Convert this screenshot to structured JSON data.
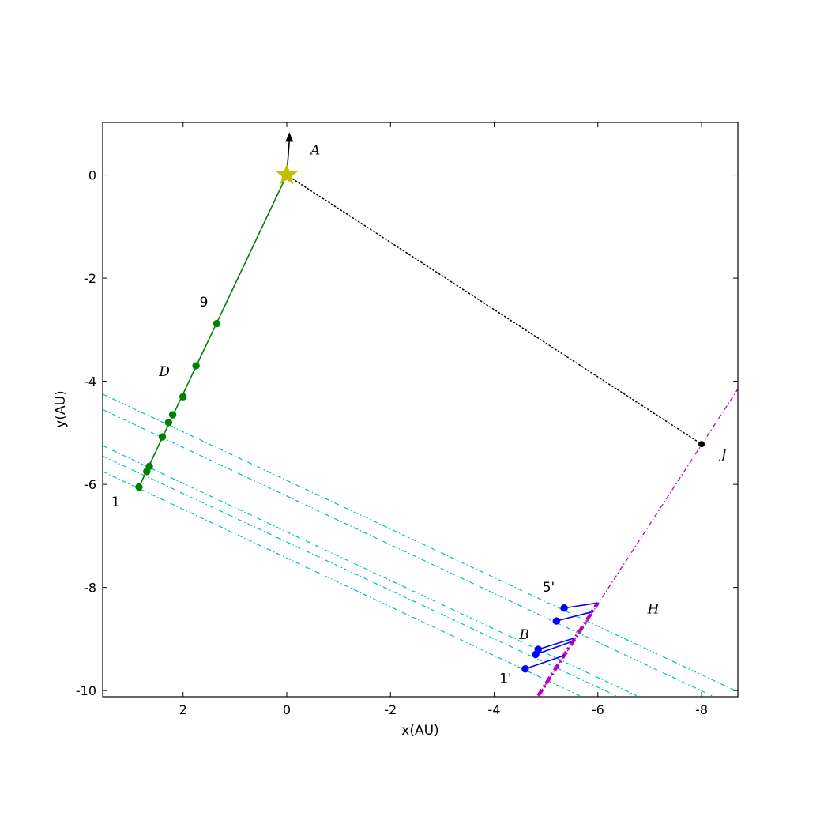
{
  "chart_data": {
    "type": "scatter",
    "title": "",
    "xlabel": "x(AU)",
    "ylabel": "y(AU)",
    "xlim": [
      3.55,
      -8.7
    ],
    "ylim": [
      -10.12,
      1.02
    ],
    "x_reversed": true,
    "grid": false,
    "x_ticks": [
      2,
      0,
      -2,
      -4,
      -6,
      -8
    ],
    "y_ticks": [
      0,
      -2,
      -4,
      -6,
      -8,
      -10
    ],
    "x_tick_labels": [
      "2",
      "0",
      "-2",
      "-4",
      "-6",
      "-8"
    ],
    "y_tick_labels": [
      "0",
      "-2",
      "-4",
      "-6",
      "-8",
      "-10"
    ],
    "colors": {
      "green": "#008000",
      "blue": "#0000ff",
      "cyan": "#00bfbf",
      "magenta": "#bf00bf",
      "star": "#bfbf00",
      "black": "#000000"
    },
    "series": [
      {
        "style": "green-line-dots",
        "points": [
          [
            2.85,
            -6.05
          ],
          [
            2.7,
            -5.75
          ],
          [
            2.65,
            -5.65
          ],
          [
            2.4,
            -5.08
          ],
          [
            2.28,
            -4.8
          ],
          [
            2.2,
            -4.65
          ],
          [
            2.0,
            -4.3
          ],
          [
            1.75,
            -3.7
          ],
          [
            1.35,
            -2.88
          ]
        ],
        "line_end": [
          0,
          0
        ]
      },
      {
        "style": "blue-segments",
        "segments": [
          [
            [
              -4.6,
              -9.58
            ],
            [
              -5.35,
              -9.32
            ]
          ],
          [
            [
              -4.8,
              -9.3
            ],
            [
              -5.5,
              -9.05
            ]
          ],
          [
            [
              -4.85,
              -9.2
            ],
            [
              -5.55,
              -8.98
            ]
          ],
          [
            [
              -5.2,
              -8.65
            ],
            [
              -5.9,
              -8.47
            ]
          ],
          [
            [
              -5.35,
              -8.4
            ],
            [
              -6.0,
              -8.3
            ]
          ]
        ]
      },
      {
        "style": "cyan-dashdot",
        "lines": [
          [
            [
              3.55,
              -4.25
            ],
            [
              -8.65,
              -10.0
            ]
          ],
          [
            [
              3.55,
              -4.55
            ],
            [
              -8.2,
              -10.1
            ]
          ],
          [
            [
              3.55,
              -5.25
            ],
            [
              -6.75,
              -10.1
            ]
          ],
          [
            [
              3.55,
              -5.45
            ],
            [
              -6.35,
              -10.1
            ]
          ],
          [
            [
              3.55,
              -5.75
            ],
            [
              -5.65,
              -10.1
            ]
          ]
        ]
      },
      {
        "style": "magenta-dashdot",
        "line": [
          [
            -4.85,
            -10.1
          ],
          [
            -8.7,
            -4.15
          ]
        ],
        "thick_line": [
          [
            -4.85,
            -10.1
          ],
          [
            -6.0,
            -8.3
          ]
        ]
      },
      {
        "style": "black-dotted",
        "line": [
          [
            0,
            0
          ],
          [
            -8.0,
            -5.22
          ]
        ],
        "point": [
          -8.0,
          -5.22
        ]
      },
      {
        "style": "star",
        "point": [
          0,
          0
        ]
      },
      {
        "style": "arrow",
        "from": [
          0,
          0
        ],
        "to": [
          -0.05,
          0.8
        ]
      }
    ],
    "annotations": [
      {
        "text": "A",
        "x": -0.55,
        "y": 0.4,
        "italic": true
      },
      {
        "text": "9",
        "x": 1.6,
        "y": -2.55,
        "italic": false
      },
      {
        "text": "D",
        "x": 2.36,
        "y": -3.9,
        "italic": true
      },
      {
        "text": "1",
        "x": 3.3,
        "y": -6.43,
        "italic": false
      },
      {
        "text": "J",
        "x": -8.43,
        "y": -5.5,
        "italic": true
      },
      {
        "text": "5'",
        "x": -5.05,
        "y": -8.08,
        "italic": false
      },
      {
        "text": "H",
        "x": -7.07,
        "y": -8.5,
        "italic": true
      },
      {
        "text": "B",
        "x": -4.58,
        "y": -9.0,
        "italic": true
      },
      {
        "text": "1'",
        "x": -4.22,
        "y": -9.85,
        "italic": false
      }
    ]
  }
}
